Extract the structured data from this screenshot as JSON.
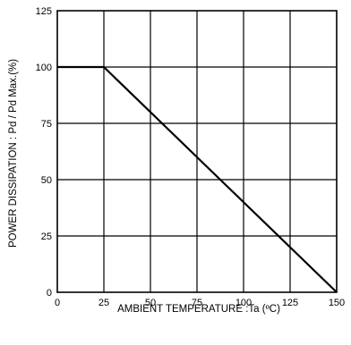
{
  "chart_data": {
    "type": "line",
    "title": "",
    "xlabel": "AMBIENT  TEMPERATURE :Ta (ºC)",
    "ylabel": "POWER  DISSIPATION : Pd / Pd Max.(%)",
    "xlim": [
      0,
      150
    ],
    "ylim": [
      0,
      125
    ],
    "xticks": [
      0,
      25,
      50,
      75,
      100,
      125,
      150
    ],
    "yticks": [
      0,
      25,
      50,
      75,
      100,
      125
    ],
    "xtick_labels": [
      "0",
      "25",
      "50",
      "75",
      "100",
      "125",
      "150"
    ],
    "ytick_labels": [
      "0",
      "25",
      "50",
      "75",
      "100",
      "125"
    ],
    "grid": true,
    "legend": "none",
    "series": [
      {
        "x": [
          0,
          25,
          150
        ],
        "y": [
          100,
          100,
          0
        ],
        "color": "#000000"
      }
    ]
  }
}
